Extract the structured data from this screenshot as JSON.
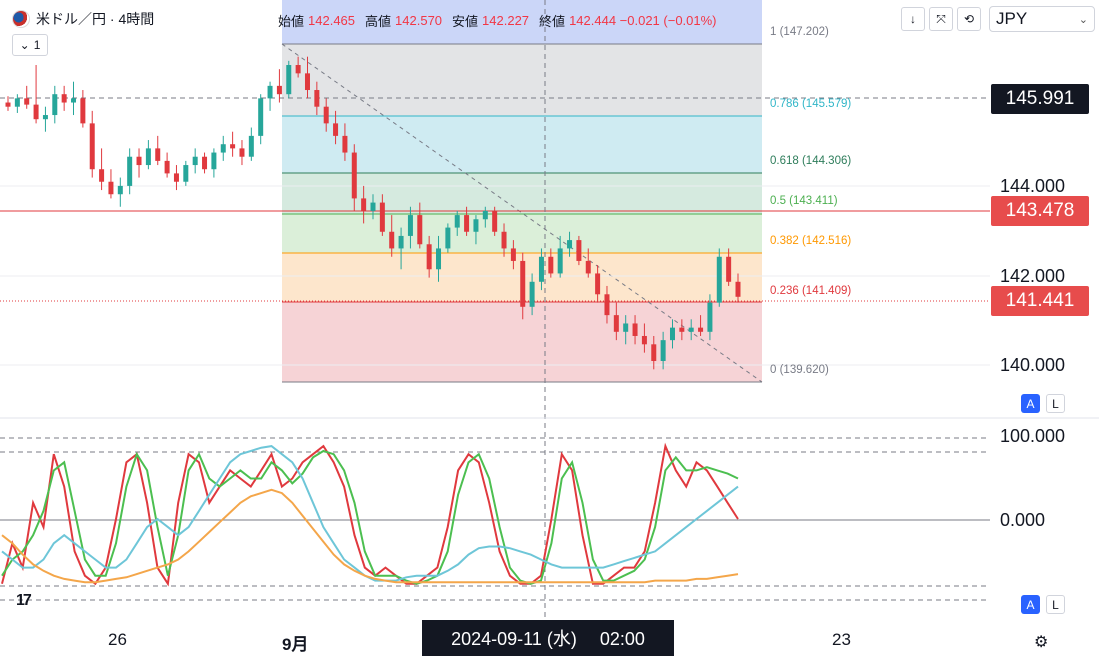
{
  "header": {
    "symbol": "米ドル／円 · 4時間",
    "interval": "1",
    "ohlc": [
      {
        "label": "始値",
        "value": "142.465"
      },
      {
        "label": "高値",
        "value": "142.570"
      },
      {
        "label": "安値",
        "value": "142.227"
      },
      {
        "label": "終値",
        "value": "142.444 −0.021 (−0.01%)"
      }
    ],
    "currency": "JPY",
    "toolbar_icons": [
      "arrow-down-icon",
      "collapse-icon",
      "sync-icon"
    ]
  },
  "price_axis": {
    "ticks": [
      "144.000",
      "142.000",
      "140.000"
    ],
    "labels": {
      "crosshair": "145.991",
      "line": "143.478",
      "last": "141.441"
    }
  },
  "fib": [
    {
      "level": "1",
      "price": "147.202",
      "text": "1 (147.202)",
      "color": "#787b86"
    },
    {
      "level": "0.786",
      "price": "145.579",
      "text": "0.786 (145.579)",
      "color": "#31b6c8"
    },
    {
      "level": "0.618",
      "price": "144.306",
      "text": "0.618 (144.306)",
      "color": "#2e7d5b"
    },
    {
      "level": "0.5",
      "price": "143.411",
      "text": "0.5 (143.411)",
      "color": "#4caf50"
    },
    {
      "level": "0.382",
      "price": "142.516",
      "text": "0.382 (142.516)",
      "color": "#ff9800"
    },
    {
      "level": "0.236",
      "price": "141.409",
      "text": "0.236 (141.409)",
      "color": "#e0393e"
    },
    {
      "level": "0",
      "price": "139.620",
      "text": "0 (139.620)",
      "color": "#787b86"
    }
  ],
  "osc_axis": {
    "ticks": [
      "100.000",
      "0.000"
    ]
  },
  "x_axis": {
    "ticks": [
      "26",
      "9月",
      "23"
    ],
    "crosshair": "2024-09-11 (水)　 02:00"
  },
  "scale_buttons": {
    "a": "A",
    "l": "L"
  },
  "colors": {
    "up": "#26a69a",
    "down": "#e0393e",
    "accent": "#2962ff"
  },
  "chart_data": {
    "type": "candlestick",
    "y_range": [
      139.3,
      147.6
    ],
    "candles": [
      [
        146.1,
        146.25,
        145.9,
        146.0
      ],
      [
        146.0,
        146.3,
        145.85,
        146.2
      ],
      [
        146.2,
        146.5,
        145.95,
        146.05
      ],
      [
        146.05,
        147.0,
        145.6,
        145.7
      ],
      [
        145.7,
        146.0,
        145.4,
        145.8
      ],
      [
        145.8,
        146.5,
        145.6,
        146.3
      ],
      [
        146.3,
        146.5,
        145.9,
        146.1
      ],
      [
        146.1,
        146.6,
        145.8,
        146.2
      ],
      [
        146.2,
        146.4,
        145.5,
        145.6
      ],
      [
        145.6,
        145.9,
        144.3,
        144.5
      ],
      [
        144.5,
        145.0,
        144.0,
        144.2
      ],
      [
        144.2,
        144.5,
        143.8,
        143.9
      ],
      [
        143.9,
        144.3,
        143.6,
        144.1
      ],
      [
        144.1,
        145.0,
        143.9,
        144.8
      ],
      [
        144.8,
        145.0,
        144.3,
        144.6
      ],
      [
        144.6,
        145.2,
        144.5,
        145.0
      ],
      [
        145.0,
        145.3,
        144.6,
        144.7
      ],
      [
        144.7,
        144.9,
        144.3,
        144.4
      ],
      [
        144.4,
        144.6,
        144.0,
        144.2
      ],
      [
        144.2,
        144.7,
        144.1,
        144.6
      ],
      [
        144.6,
        145.0,
        144.4,
        144.8
      ],
      [
        144.8,
        144.9,
        144.4,
        144.5
      ],
      [
        144.5,
        145.0,
        144.3,
        144.9
      ],
      [
        144.9,
        145.3,
        144.7,
        145.1
      ],
      [
        145.1,
        145.4,
        144.8,
        145.0
      ],
      [
        145.0,
        145.2,
        144.6,
        144.8
      ],
      [
        144.8,
        145.5,
        144.7,
        145.3
      ],
      [
        145.3,
        146.3,
        145.1,
        146.2
      ],
      [
        146.2,
        146.6,
        145.9,
        146.5
      ],
      [
        146.5,
        146.9,
        146.1,
        146.3
      ],
      [
        146.3,
        147.1,
        146.2,
        147.0
      ],
      [
        147.0,
        147.2,
        146.7,
        146.8
      ],
      [
        146.8,
        147.2,
        146.2,
        146.4
      ],
      [
        146.4,
        146.6,
        145.8,
        146.0
      ],
      [
        146.0,
        146.2,
        145.4,
        145.6
      ],
      [
        145.6,
        145.9,
        145.1,
        145.3
      ],
      [
        145.3,
        145.6,
        144.7,
        144.9
      ],
      [
        144.9,
        145.1,
        143.5,
        143.8
      ],
      [
        143.8,
        144.1,
        143.2,
        143.5
      ],
      [
        143.5,
        143.9,
        143.3,
        143.7
      ],
      [
        143.7,
        143.9,
        142.9,
        143.0
      ],
      [
        143.0,
        143.4,
        142.4,
        142.6
      ],
      [
        142.6,
        143.1,
        142.1,
        142.9
      ],
      [
        142.9,
        143.6,
        142.6,
        143.4
      ],
      [
        143.4,
        143.7,
        142.6,
        142.7
      ],
      [
        142.7,
        142.9,
        141.9,
        142.1
      ],
      [
        142.1,
        142.9,
        141.8,
        142.6
      ],
      [
        142.6,
        143.2,
        142.5,
        143.1
      ],
      [
        143.1,
        143.5,
        142.9,
        143.4
      ],
      [
        143.4,
        143.6,
        142.9,
        143.0
      ],
      [
        143.0,
        143.4,
        142.7,
        143.3
      ],
      [
        143.3,
        143.6,
        143.1,
        143.5
      ],
      [
        143.5,
        143.6,
        142.9,
        143.0
      ],
      [
        143.0,
        143.2,
        142.4,
        142.6
      ],
      [
        142.6,
        142.8,
        142.1,
        142.3
      ],
      [
        142.3,
        142.5,
        140.9,
        141.2
      ],
      [
        141.2,
        142.0,
        141.0,
        141.8
      ],
      [
        141.8,
        142.6,
        141.6,
        142.4
      ],
      [
        142.4,
        142.6,
        141.9,
        142.0
      ],
      [
        142.0,
        142.9,
        141.9,
        142.6
      ],
      [
        142.6,
        143.0,
        142.4,
        142.8
      ],
      [
        142.8,
        142.9,
        142.2,
        142.3
      ],
      [
        142.3,
        142.6,
        141.9,
        142.0
      ],
      [
        142.0,
        142.2,
        141.3,
        141.5
      ],
      [
        141.5,
        141.7,
        140.8,
        141.0
      ],
      [
        141.0,
        141.3,
        140.4,
        140.6
      ],
      [
        140.6,
        141.0,
        140.3,
        140.8
      ],
      [
        140.8,
        141.0,
        140.3,
        140.5
      ],
      [
        140.5,
        140.8,
        140.1,
        140.3
      ],
      [
        140.3,
        140.5,
        139.7,
        139.9
      ],
      [
        139.9,
        140.6,
        139.7,
        140.4
      ],
      [
        140.4,
        140.9,
        140.2,
        140.7
      ],
      [
        140.7,
        140.9,
        140.4,
        140.6
      ],
      [
        140.6,
        140.9,
        140.4,
        140.7
      ],
      [
        140.7,
        141.0,
        140.5,
        140.6
      ],
      [
        140.6,
        141.5,
        140.4,
        141.3
      ],
      [
        141.3,
        142.6,
        141.2,
        142.4
      ],
      [
        142.4,
        142.6,
        141.7,
        141.8
      ],
      [
        141.8,
        142.0,
        141.3,
        141.44
      ]
    ],
    "stochastic_series": [
      {
        "color": "#e0393e",
        "values": [
          10,
          35,
          20,
          60,
          45,
          90,
          70,
          30,
          15,
          10,
          20,
          50,
          85,
          90,
          60,
          20,
          10,
          60,
          90,
          85,
          60,
          70,
          80,
          75,
          70,
          80,
          90,
          70,
          75,
          85,
          90,
          95,
          85,
          70,
          40,
          20,
          15,
          20,
          15,
          10,
          10,
          15,
          20,
          45,
          80,
          90,
          85,
          60,
          30,
          15,
          10,
          10,
          15,
          50,
          90,
          80,
          40,
          10,
          10,
          15,
          20,
          20,
          30,
          60,
          95,
          80,
          70,
          85,
          80,
          70,
          60,
          50
        ]
      },
      {
        "color": "#4cbf50",
        "values": [
          15,
          25,
          30,
          40,
          55,
          80,
          85,
          55,
          25,
          15,
          15,
          35,
          70,
          90,
          80,
          45,
          15,
          40,
          80,
          90,
          75,
          70,
          75,
          80,
          75,
          75,
          85,
          80,
          72,
          78,
          88,
          92,
          90,
          80,
          60,
          30,
          15,
          15,
          15,
          12,
          10,
          12,
          15,
          30,
          65,
          85,
          90,
          75,
          45,
          20,
          12,
          10,
          12,
          35,
          75,
          85,
          60,
          25,
          12,
          12,
          15,
          18,
          25,
          45,
          80,
          88,
          80,
          80,
          82,
          80,
          78,
          75
        ]
      },
      {
        "color": "#6ec6d8",
        "values": [
          30,
          25,
          20,
          20,
          25,
          35,
          40,
          35,
          30,
          25,
          20,
          20,
          25,
          35,
          45,
          50,
          45,
          40,
          45,
          55,
          65,
          75,
          85,
          90,
          92,
          94,
          95,
          90,
          85,
          75,
          60,
          45,
          35,
          25,
          20,
          15,
          12,
          12,
          12,
          14,
          15,
          15,
          15,
          18,
          22,
          28,
          32,
          33,
          33,
          32,
          30,
          28,
          25,
          22,
          20,
          20,
          20,
          20,
          20,
          22,
          24,
          26,
          28,
          30,
          35,
          40,
          45,
          50,
          55,
          60,
          65,
          70
        ]
      },
      {
        "color": "#f4a64a",
        "values": [
          40,
          35,
          28,
          22,
          18,
          15,
          13,
          12,
          11,
          11,
          12,
          13,
          14,
          16,
          18,
          20,
          22,
          25,
          30,
          36,
          42,
          48,
          54,
          60,
          64,
          66,
          68,
          66,
          60,
          52,
          44,
          36,
          28,
          22,
          18,
          15,
          13,
          12,
          11,
          11,
          11,
          11,
          11,
          11,
          11,
          11,
          11,
          11,
          11,
          11,
          11,
          11,
          11,
          11,
          11,
          11,
          11,
          11,
          11,
          11,
          11,
          11,
          11,
          12,
          12,
          12,
          12,
          13,
          13,
          14,
          15,
          16
        ]
      }
    ]
  }
}
